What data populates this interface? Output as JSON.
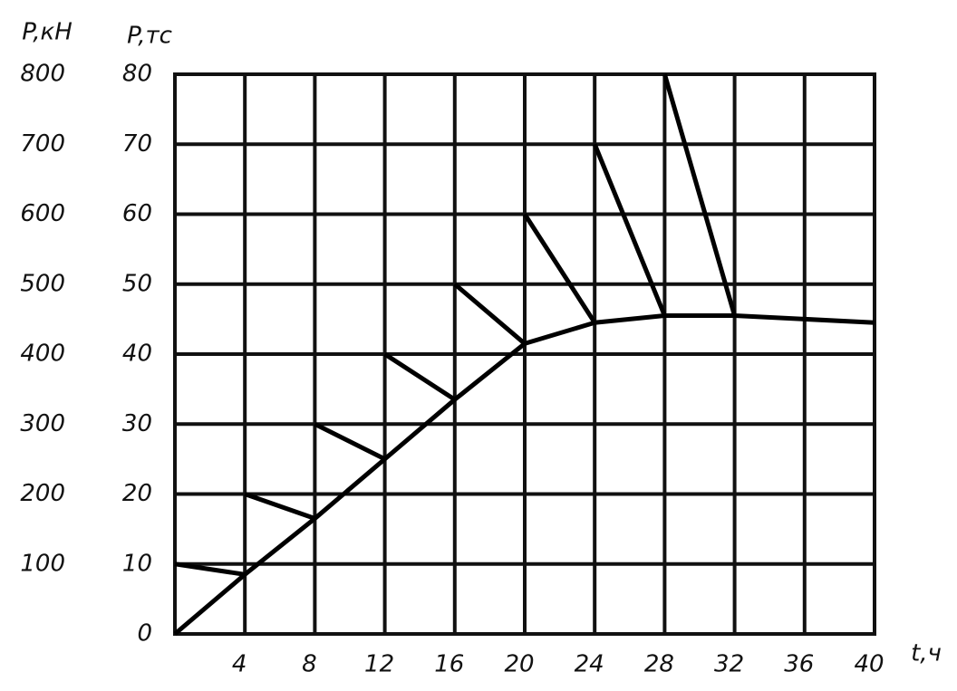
{
  "chart_data": {
    "type": "line",
    "ylabel": "P,тс",
    "y2label": "P,кН",
    "xlabel": "t,ч",
    "xlim": [
      0,
      40
    ],
    "xticks": [
      4,
      8,
      12,
      16,
      20,
      24,
      28,
      32,
      36,
      40
    ],
    "ylim": [
      0,
      80
    ],
    "yticks": [
      0,
      10,
      20,
      30,
      40,
      50,
      60,
      70,
      80
    ],
    "y2lim": [
      0,
      800
    ],
    "y2ticks": [
      100,
      200,
      300,
      400,
      500,
      600,
      700,
      800
    ],
    "grid": true,
    "series": [
      {
        "color": "#000000",
        "x": [
          0,
          4,
          8,
          12,
          16,
          20,
          24,
          28,
          32,
          36,
          40
        ],
        "values": [
          0,
          8.5,
          16.5,
          25,
          33.5,
          41.5,
          44.5,
          45.5,
          45.5,
          45,
          44.5
        ]
      },
      {
        "color": "#000000",
        "x": [
          0,
          4
        ],
        "values": [
          10,
          8.5
        ]
      },
      {
        "color": "#000000",
        "x": [
          4,
          8
        ],
        "values": [
          20,
          16.5
        ]
      },
      {
        "color": "#000000",
        "x": [
          8,
          12
        ],
        "values": [
          30,
          25
        ]
      },
      {
        "color": "#000000",
        "x": [
          12,
          16
        ],
        "values": [
          40,
          33.5
        ]
      },
      {
        "color": "#000000",
        "x": [
          16,
          20
        ],
        "values": [
          50,
          41.5
        ]
      },
      {
        "color": "#000000",
        "x": [
          20,
          24
        ],
        "values": [
          60,
          44.5
        ]
      },
      {
        "color": "#000000",
        "x": [
          24,
          28
        ],
        "values": [
          70,
          45.5
        ]
      },
      {
        "color": "#000000",
        "x": [
          28,
          32
        ],
        "values": [
          80,
          45.5
        ]
      }
    ]
  }
}
